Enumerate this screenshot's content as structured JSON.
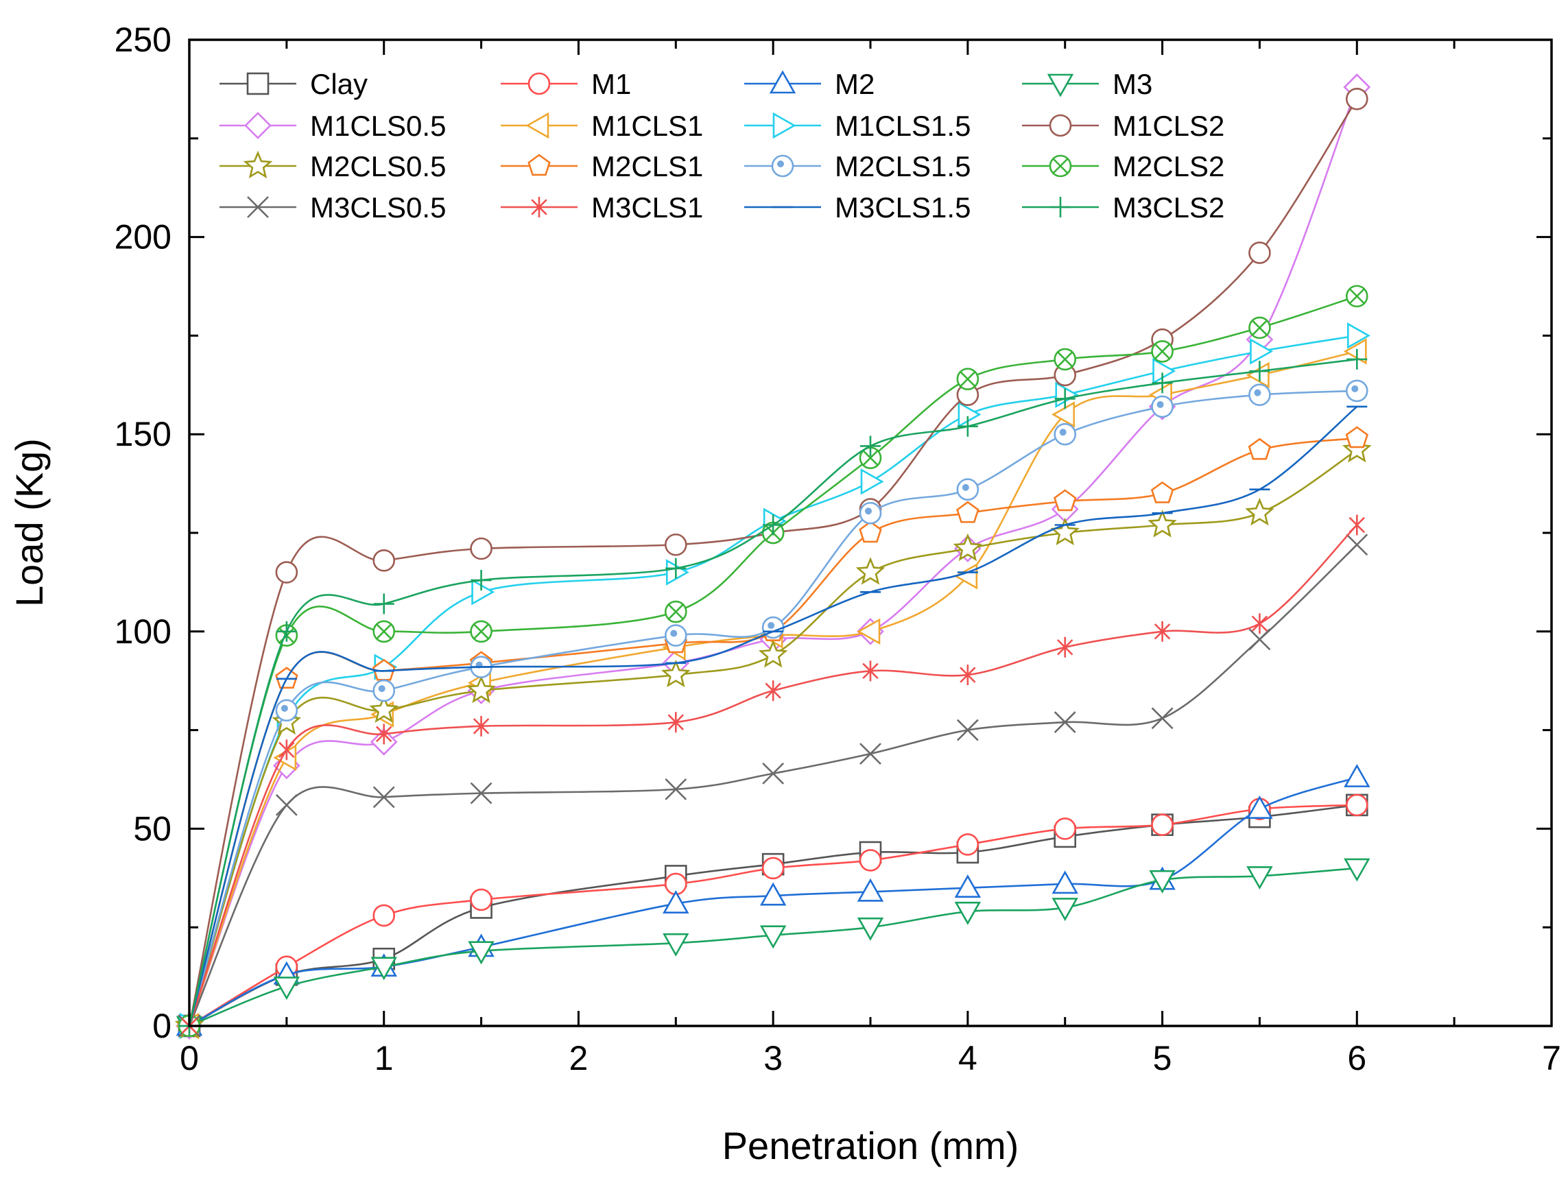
{
  "chart_data": {
    "type": "line",
    "title": "",
    "xlabel": "Penetration (mm)",
    "ylabel": "Load (Kg)",
    "xlim": [
      0,
      7
    ],
    "ylim": [
      0,
      250
    ],
    "xticks": [
      0,
      1,
      2,
      3,
      4,
      5,
      6,
      7
    ],
    "yticks": [
      0,
      50,
      100,
      150,
      200,
      250
    ],
    "grid": false,
    "legend_position": "top-left",
    "series": [
      {
        "name": "Clay",
        "color": "#555555",
        "marker": "square",
        "x": [
          0,
          0.5,
          1,
          1.5,
          2.5,
          3,
          3.5,
          4,
          4.5,
          5,
          5.5,
          6
        ],
        "y": [
          0,
          13,
          17,
          30,
          38,
          41,
          44,
          44,
          48,
          51,
          53,
          56
        ]
      },
      {
        "name": "M1",
        "color": "#ff4d4d",
        "marker": "circle",
        "x": [
          0,
          0.5,
          1,
          1.5,
          2.5,
          3,
          3.5,
          4,
          4.5,
          5,
          5.5,
          6
        ],
        "y": [
          0,
          15,
          28,
          32,
          36,
          40,
          42,
          46,
          50,
          51,
          55,
          56
        ]
      },
      {
        "name": "M2",
        "color": "#1f6fd6",
        "marker": "triangle-up",
        "x": [
          0,
          0.5,
          1,
          1.5,
          2.5,
          3,
          3.5,
          4,
          4.5,
          5,
          5.5,
          6
        ],
        "y": [
          0,
          13,
          15,
          20,
          31,
          33,
          34,
          35,
          36,
          37,
          55,
          63
        ]
      },
      {
        "name": "M3",
        "color": "#1aa35f",
        "marker": "triangle-down",
        "x": [
          0,
          0.5,
          1,
          1.5,
          2.5,
          3,
          3.5,
          4,
          4.5,
          5,
          5.5,
          6
        ],
        "y": [
          0,
          10,
          15,
          19,
          21,
          23,
          25,
          29,
          30,
          37,
          38,
          40
        ]
      },
      {
        "name": "M1CLS0.5",
        "color": "#d77cf0",
        "marker": "diamond",
        "x": [
          0,
          0.5,
          1,
          1.5,
          2.5,
          3,
          3.5,
          4,
          4.5,
          5,
          5.5,
          6
        ],
        "y": [
          0,
          66,
          72,
          85,
          92,
          98,
          100,
          121,
          131,
          157,
          174,
          238
        ]
      },
      {
        "name": "M1CLS1",
        "color": "#f0a830",
        "marker": "triangle-left",
        "x": [
          0,
          0.5,
          1,
          1.5,
          2.5,
          3,
          3.5,
          4,
          4.5,
          5,
          5.5,
          6
        ],
        "y": [
          0,
          68,
          79,
          87,
          96,
          99,
          100,
          114,
          155,
          160,
          165,
          171
        ]
      },
      {
        "name": "M1CLS1.5",
        "color": "#22d0ec",
        "marker": "triangle-right",
        "x": [
          0,
          0.5,
          1,
          1.5,
          2.5,
          3,
          3.5,
          4,
          4.5,
          5,
          5.5,
          6
        ],
        "y": [
          0,
          78,
          91,
          110,
          115,
          128,
          138,
          155,
          160,
          166,
          171,
          175
        ]
      },
      {
        "name": "M1CLS2",
        "color": "#9c5c52",
        "marker": "circle",
        "x": [
          0,
          0.5,
          1,
          1.5,
          2.5,
          3,
          3.5,
          4,
          4.5,
          5,
          5.5,
          6
        ],
        "y": [
          0,
          115,
          118,
          121,
          122,
          125,
          131,
          160,
          165,
          174,
          196,
          235
        ]
      },
      {
        "name": "M2CLS0.5",
        "color": "#9e9a1c",
        "marker": "star",
        "x": [
          0,
          0.5,
          1,
          1.5,
          2.5,
          3,
          3.5,
          4,
          4.5,
          5,
          5.5,
          6
        ],
        "y": [
          0,
          77,
          80,
          85,
          89,
          94,
          115,
          121,
          125,
          127,
          130,
          146
        ]
      },
      {
        "name": "M2CLS1",
        "color": "#f57b22",
        "marker": "pentagon",
        "x": [
          0,
          0.5,
          1,
          1.5,
          2.5,
          3,
          3.5,
          4,
          4.5,
          5,
          5.5,
          6
        ],
        "y": [
          0,
          88,
          90,
          92,
          97,
          100,
          125,
          130,
          133,
          135,
          146,
          149
        ]
      },
      {
        "name": "M2CLS1.5",
        "color": "#74a8de",
        "marker": "circle-dot",
        "x": [
          0,
          0.5,
          1,
          1.5,
          2.5,
          3,
          3.5,
          4,
          4.5,
          5,
          5.5,
          6
        ],
        "y": [
          0,
          80,
          85,
          91,
          99,
          101,
          130,
          136,
          150,
          157,
          160,
          161
        ]
      },
      {
        "name": "M2CLS2",
        "color": "#39b337",
        "marker": "circle-x",
        "x": [
          0,
          0.5,
          1,
          1.5,
          2.5,
          3,
          3.5,
          4,
          4.5,
          5,
          5.5,
          6
        ],
        "y": [
          0,
          99,
          100,
          100,
          105,
          125,
          144,
          164,
          169,
          171,
          177,
          185
        ]
      },
      {
        "name": "M3CLS0.5",
        "color": "#6b6b6b",
        "marker": "x",
        "x": [
          0,
          0.5,
          1,
          1.5,
          2.5,
          3,
          3.5,
          4,
          4.5,
          5,
          5.5,
          6
        ],
        "y": [
          0,
          56,
          58,
          59,
          60,
          64,
          69,
          75,
          77,
          78,
          98,
          122
        ]
      },
      {
        "name": "M3CLS1",
        "color": "#f05050",
        "marker": "asterisk",
        "x": [
          0,
          0.5,
          1,
          1.5,
          2.5,
          3,
          3.5,
          4,
          4.5,
          5,
          5.5,
          6
        ],
        "y": [
          0,
          70,
          74,
          76,
          77,
          85,
          90,
          89,
          96,
          100,
          102,
          127
        ]
      },
      {
        "name": "M3CLS1.5",
        "color": "#1565c0",
        "marker": "dash",
        "x": [
          0,
          0.5,
          1,
          1.5,
          2.5,
          3,
          3.5,
          4,
          4.5,
          5,
          5.5,
          6
        ],
        "y": [
          0,
          88,
          90,
          91,
          92,
          100,
          110,
          115,
          127,
          130,
          136,
          157
        ]
      },
      {
        "name": "M3CLS2",
        "color": "#1aa35f",
        "marker": "plus",
        "x": [
          0,
          0.5,
          1,
          1.5,
          2.5,
          3,
          3.5,
          4,
          4.5,
          5,
          5.5,
          6
        ],
        "y": [
          0,
          100,
          107,
          113,
          116,
          127,
          147,
          152,
          159,
          163,
          166,
          169
        ]
      }
    ]
  }
}
